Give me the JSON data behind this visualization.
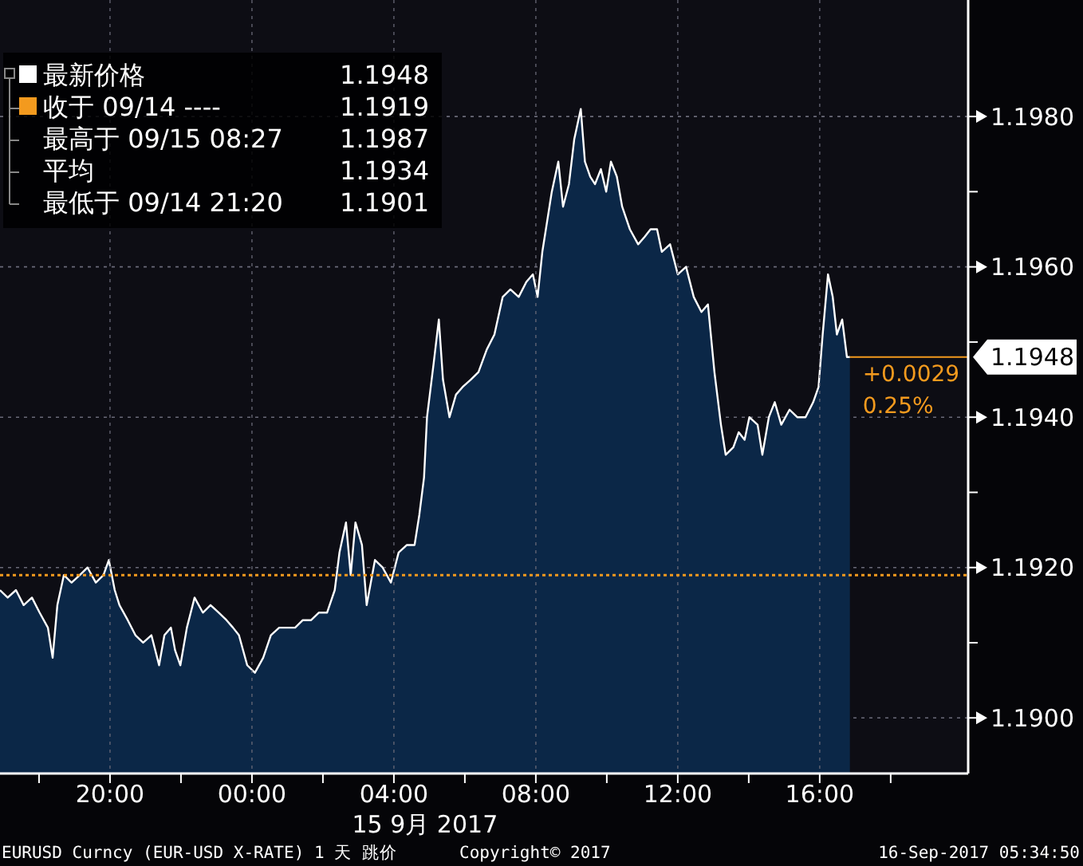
{
  "chart_data": {
    "type": "area",
    "xlabel": "15 9月 2017",
    "legend": "top left",
    "grid": true,
    "tick_labels": "xy",
    "xlim": [
      "2017-09-14T16:54",
      "2017-09-15T20:11"
    ],
    "ylim": [
      1.18926,
      1.19955
    ],
    "xticks": [
      {
        "value": "2017-09-14T18:00",
        "label": null
      },
      {
        "value": "2017-09-14T20:00",
        "label": "20:00"
      },
      {
        "value": "2017-09-14T22:00",
        "label": null
      },
      {
        "value": "2017-09-15T00:00",
        "label": "00:00"
      },
      {
        "value": "2017-09-15T02:00",
        "label": null
      },
      {
        "value": "2017-09-15T04:00",
        "label": "04:00"
      },
      {
        "value": "2017-09-15T06:00",
        "label": null
      },
      {
        "value": "2017-09-15T08:00",
        "label": "08:00"
      },
      {
        "value": "2017-09-15T10:00",
        "label": null
      },
      {
        "value": "2017-09-15T12:00",
        "label": "12:00"
      },
      {
        "value": "2017-09-15T14:00",
        "label": null
      },
      {
        "value": "2017-09-15T16:00",
        "label": "16:00"
      },
      {
        "value": "2017-09-15T18:00",
        "label": null
      }
    ],
    "yticks": [
      {
        "value": 1.19,
        "label": "1.1900"
      },
      {
        "value": 1.191,
        "label": null
      },
      {
        "value": 1.192,
        "label": "1.1920"
      },
      {
        "value": 1.193,
        "label": null
      },
      {
        "value": 1.194,
        "label": "1.1940"
      },
      {
        "value": 1.195,
        "label": null
      },
      {
        "value": 1.196,
        "label": "1.1960"
      },
      {
        "value": 1.197,
        "label": null
      },
      {
        "value": 1.198,
        "label": "1.1980"
      }
    ],
    "series": [
      {
        "name": "最新价格",
        "color": "#ffffff",
        "x": [
          "2017-09-14T16:54",
          "2017-09-14T17:07",
          "2017-09-14T17:21",
          "2017-09-14T17:34",
          "2017-09-14T17:48",
          "2017-09-14T18:01",
          "2017-09-14T18:15",
          "2017-09-14T18:23",
          "2017-09-14T18:31",
          "2017-09-14T18:42",
          "2017-09-14T18:55",
          "2017-09-14T19:09",
          "2017-09-14T19:22",
          "2017-09-14T19:36",
          "2017-09-14T19:49",
          "2017-09-14T19:58",
          "2017-09-14T20:08",
          "2017-09-14T20:16",
          "2017-09-14T20:30",
          "2017-09-14T20:43",
          "2017-09-14T20:56",
          "2017-09-14T21:10",
          "2017-09-14T21:23",
          "2017-09-14T21:32",
          "2017-09-14T21:43",
          "2017-09-14T21:50",
          "2017-09-14T21:59",
          "2017-09-14T22:10",
          "2017-09-14T22:23",
          "2017-09-14T22:37",
          "2017-09-14T22:50",
          "2017-09-14T23:04",
          "2017-09-14T23:17",
          "2017-09-14T23:28",
          "2017-09-14T23:38",
          "2017-09-14T23:52",
          "2017-09-15T00:05",
          "2017-09-15T00:19",
          "2017-09-15T00:32",
          "2017-09-15T00:46",
          "2017-09-15T00:59",
          "2017-09-15T01:13",
          "2017-09-15T01:26",
          "2017-09-15T01:40",
          "2017-09-15T01:53",
          "2017-09-15T02:07",
          "2017-09-15T02:20",
          "2017-09-15T02:28",
          "2017-09-15T02:39",
          "2017-09-15T02:47",
          "2017-09-15T02:55",
          "2017-09-15T03:06",
          "2017-09-15T03:14",
          "2017-09-15T03:28",
          "2017-09-15T03:41",
          "2017-09-15T03:55",
          "2017-09-15T04:08",
          "2017-09-15T04:22",
          "2017-09-15T04:35",
          "2017-09-15T04:43",
          "2017-09-15T04:51",
          "2017-09-15T04:56",
          "2017-09-15T05:07",
          "2017-09-15T05:16",
          "2017-09-15T05:23",
          "2017-09-15T05:34",
          "2017-09-15T05:45",
          "2017-09-15T05:56",
          "2017-09-15T06:10",
          "2017-09-15T06:23",
          "2017-09-15T06:37",
          "2017-09-15T06:50",
          "2017-09-15T07:04",
          "2017-09-15T07:17",
          "2017-09-15T07:31",
          "2017-09-15T07:44",
          "2017-09-15T07:55",
          "2017-09-15T08:03",
          "2017-09-15T08:11",
          "2017-09-15T08:19",
          "2017-09-15T08:27",
          "2017-09-15T08:38",
          "2017-09-15T08:46",
          "2017-09-15T08:56",
          "2017-09-15T09:05",
          "2017-09-15T09:16",
          "2017-09-15T09:23",
          "2017-09-15T09:32",
          "2017-09-15T09:40",
          "2017-09-15T09:50",
          "2017-09-15T09:59",
          "2017-09-15T10:07",
          "2017-09-15T10:17",
          "2017-09-15T10:26",
          "2017-09-15T10:39",
          "2017-09-15T10:53",
          "2017-09-15T11:04",
          "2017-09-15T11:14",
          "2017-09-15T11:25",
          "2017-09-15T11:33",
          "2017-09-15T11:47",
          "2017-09-15T12:00",
          "2017-09-15T12:14",
          "2017-09-15T12:27",
          "2017-09-15T12:40",
          "2017-09-15T12:51",
          "2017-09-15T13:02",
          "2017-09-15T13:13",
          "2017-09-15T13:21",
          "2017-09-15T13:34",
          "2017-09-15T13:43",
          "2017-09-15T13:53",
          "2017-09-15T14:01",
          "2017-09-15T14:15",
          "2017-09-15T14:23",
          "2017-09-15T14:34",
          "2017-09-15T14:44",
          "2017-09-15T14:55",
          "2017-09-15T15:09",
          "2017-09-15T15:22",
          "2017-09-15T15:36",
          "2017-09-15T15:49",
          "2017-09-15T15:58",
          "2017-09-15T16:05",
          "2017-09-15T16:14",
          "2017-09-15T16:22",
          "2017-09-15T16:29",
          "2017-09-15T16:38",
          "2017-09-15T16:46",
          "2017-09-15T16:51"
        ],
        "values": [
          1.1917,
          1.1916,
          1.1917,
          1.1915,
          1.1916,
          1.1914,
          1.1912,
          1.1908,
          1.1915,
          1.1919,
          1.1918,
          1.1919,
          1.192,
          1.1918,
          1.1919,
          1.1921,
          1.1917,
          1.1915,
          1.1913,
          1.1911,
          1.191,
          1.1911,
          1.1907,
          1.1911,
          1.1912,
          1.1909,
          1.1907,
          1.1912,
          1.1916,
          1.1914,
          1.1915,
          1.1914,
          1.1913,
          1.1912,
          1.1911,
          1.1907,
          1.1906,
          1.1908,
          1.1911,
          1.1912,
          1.1912,
          1.1912,
          1.1913,
          1.1913,
          1.1914,
          1.1914,
          1.1917,
          1.1922,
          1.1926,
          1.1919,
          1.1926,
          1.1923,
          1.1915,
          1.1921,
          1.192,
          1.1918,
          1.1922,
          1.1923,
          1.1923,
          1.1927,
          1.1932,
          1.194,
          1.1947,
          1.1953,
          1.1945,
          1.194,
          1.1943,
          1.1944,
          1.1945,
          1.1946,
          1.1949,
          1.1951,
          1.1956,
          1.1957,
          1.1956,
          1.1958,
          1.1959,
          1.1956,
          1.1962,
          1.1966,
          1.197,
          1.1974,
          1.1968,
          1.1971,
          1.1977,
          1.1981,
          1.1974,
          1.1972,
          1.1971,
          1.1973,
          1.197,
          1.1974,
          1.1972,
          1.1968,
          1.1965,
          1.1963,
          1.1964,
          1.1965,
          1.1965,
          1.1962,
          1.1963,
          1.1959,
          1.196,
          1.1956,
          1.1954,
          1.1955,
          1.1946,
          1.1939,
          1.1935,
          1.1936,
          1.1938,
          1.1937,
          1.194,
          1.1939,
          1.1935,
          1.194,
          1.1942,
          1.1939,
          1.1941,
          1.194,
          1.194,
          1.1942,
          1.1944,
          1.1951,
          1.1959,
          1.1956,
          1.1951,
          1.1953,
          1.1948,
          1.1948
        ]
      }
    ],
    "ref_lines": [
      {
        "axis": "y",
        "value": 1.1919,
        "label": "收于 09/14 ----",
        "color": "#f39a1e",
        "line_style": "dotted"
      }
    ],
    "annotations": [
      "1.1948",
      "1.1919",
      "最高于 09/15 08:27",
      "1.1987",
      "平均",
      "1.1934",
      "最低于 09/14 21:20",
      "1.1901",
      "+0.0029",
      "0.25%",
      "1.1948",
      "EURUSD Curncy (EUR-USD X-RATE) 1 天  跳价",
      "Copyright© 2017",
      "16-Sep-2017 05:34:50"
    ]
  }
}
